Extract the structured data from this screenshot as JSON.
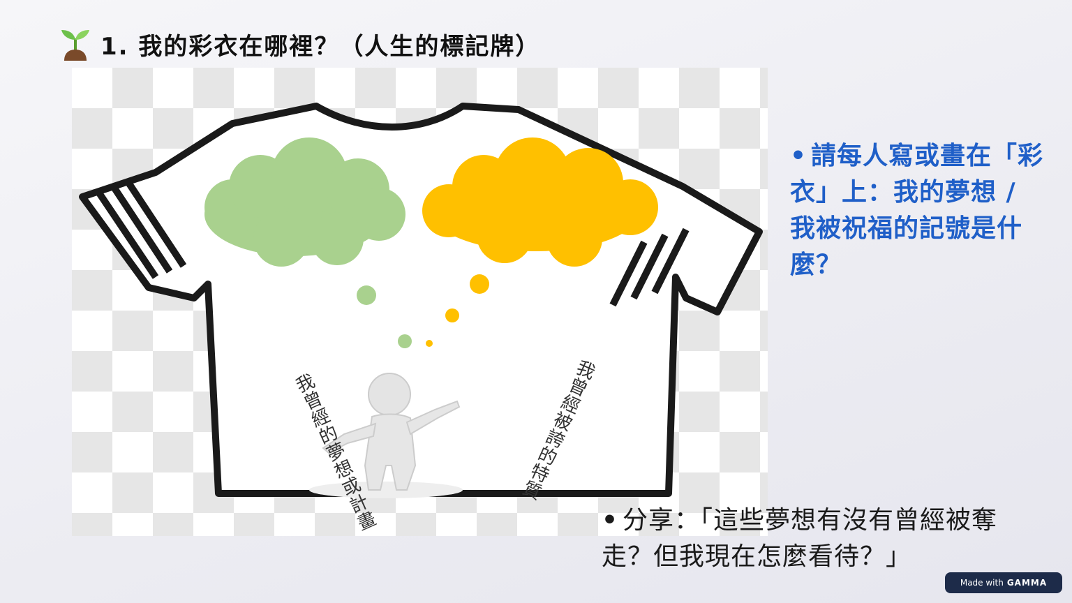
{
  "slide": {
    "title": "1. 我的彩衣在哪裡？（人生的標記牌）",
    "title_icon": "seedling-icon",
    "shirt": {
      "left_label": "我曾經的夢想或計畫",
      "right_label": "我曾經被誇的特質"
    },
    "bullets": [
      {
        "text": "請每人寫或畫在「彩衣」上：我的夢想 / 我被祝福的記號是什麼？",
        "color": "#1f5fc8"
      },
      {
        "text": "分享：「這些夢想有沒有曾經被奪走？但我現在怎麼看待？」",
        "color": "#1a1a1a"
      }
    ],
    "badge": {
      "prefix": "Made with",
      "brand": "GAMMA"
    },
    "colors": {
      "green_cloud": "#a9d18e",
      "gold_cloud": "#ffc000",
      "accent_blue": "#1f5fc8"
    }
  }
}
